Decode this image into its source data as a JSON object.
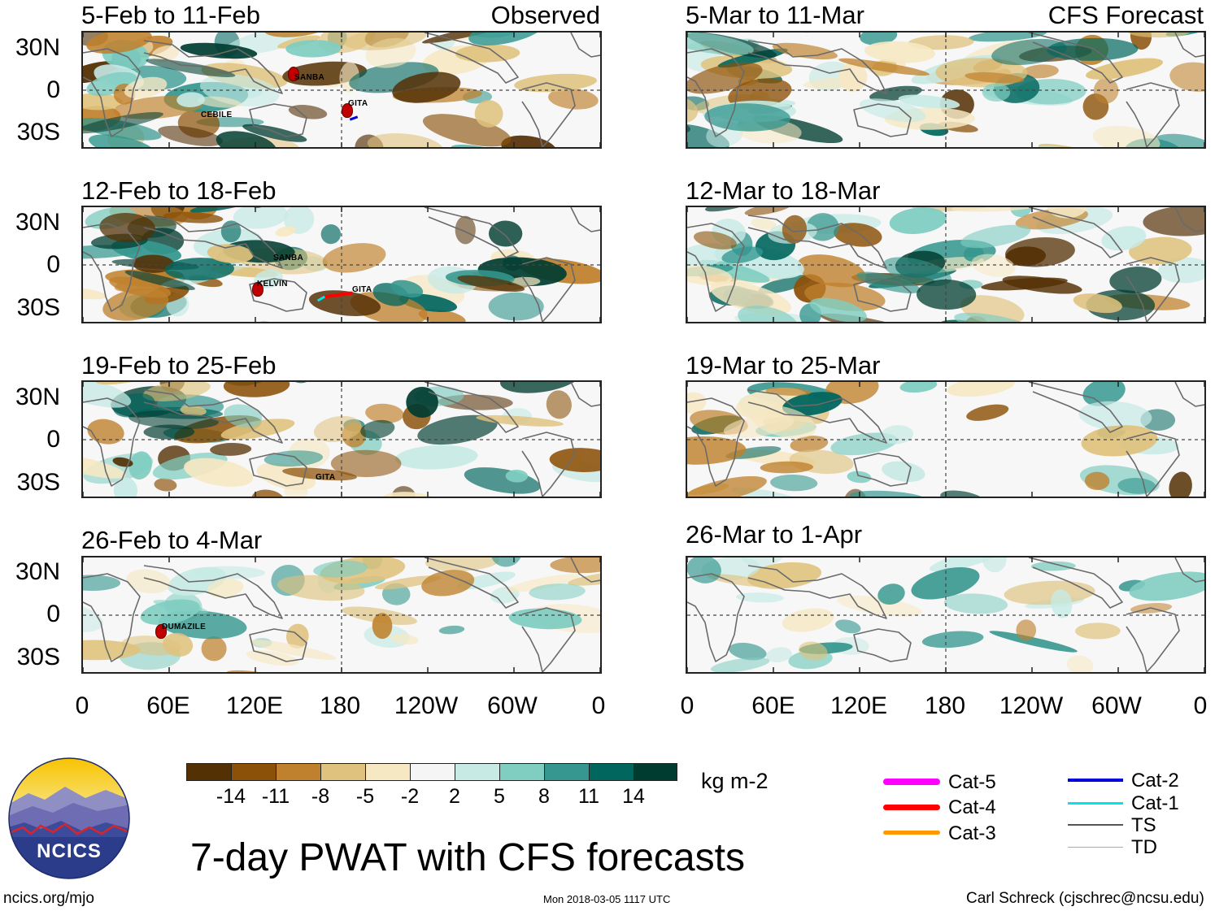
{
  "observed_label": "Observed",
  "forecast_label": "CFS Forecast",
  "panels": [
    {
      "title": "5-Feb to 11-Feb",
      "storms": [
        "SANBA",
        "CEBILE",
        "GITA"
      ]
    },
    {
      "title": "12-Feb to 18-Feb",
      "storms": [
        "SANBA",
        "KELVIN",
        "GITA"
      ]
    },
    {
      "title": "19-Feb to 25-Feb",
      "storms": [
        "GITA"
      ]
    },
    {
      "title": "26-Feb to 4-Mar",
      "storms": [
        "DUMAZILE"
      ]
    },
    {
      "title": "5-Mar to 11-Mar",
      "storms": []
    },
    {
      "title": "12-Mar to 18-Mar",
      "storms": []
    },
    {
      "title": "19-Mar to 25-Mar",
      "storms": []
    },
    {
      "title": "26-Mar to 1-Apr",
      "storms": []
    }
  ],
  "y_ticks": [
    "30N",
    "0",
    "30S"
  ],
  "x_ticks": [
    "0",
    "60E",
    "120E",
    "180",
    "120W",
    "60W",
    "0"
  ],
  "colorbar": {
    "units": "kg m-2",
    "ticks": [
      "-14",
      "-11",
      "-8",
      "-5",
      "-2",
      "2",
      "5",
      "8",
      "11",
      "14"
    ],
    "colors": [
      "#543005",
      "#8c5109",
      "#bf812d",
      "#dfc27d",
      "#f6e8c3",
      "#f5f5f5",
      "#c7eae5",
      "#80cdc1",
      "#35978f",
      "#01665e",
      "#003c30"
    ]
  },
  "legend": [
    {
      "label": "Cat-5",
      "color": "#ff00ff"
    },
    {
      "label": "Cat-4",
      "color": "#ff0000"
    },
    {
      "label": "Cat-3",
      "color": "#ff9900"
    },
    {
      "label": "Cat-2",
      "color": "#0000dd"
    },
    {
      "label": "Cat-1",
      "color": "#00e5ee"
    },
    {
      "label": "TS",
      "color": "#555555"
    },
    {
      "label": "TD",
      "color": "#aaaaaa"
    }
  ],
  "main_title": "7-day PWAT with CFS forecasts",
  "logo_text": "NCICS",
  "footer": {
    "url": "ncics.org/mjo",
    "timestamp": "Mon 2018-03-05 1117 UTC",
    "credit": "Carl Schreck (cjschrec@ncsu.edu)"
  }
}
